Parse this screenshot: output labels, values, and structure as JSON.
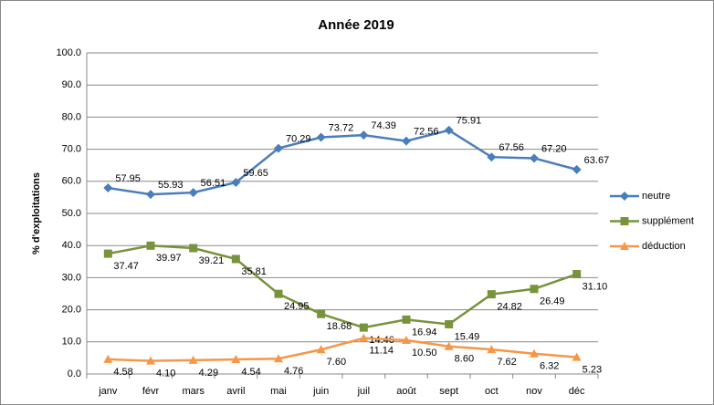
{
  "chart_data": {
    "type": "line",
    "title": "Année 2019",
    "y_label": "% d'exploitations",
    "categories": [
      "janv",
      "févr",
      "mars",
      "avril",
      "mai",
      "juin",
      "juil",
      "août",
      "sept",
      "oct",
      "nov",
      "déc"
    ],
    "series": [
      {
        "name": "neutre",
        "color": "#4a7ebb",
        "marker": "diamond",
        "values": [
          57.95,
          55.93,
          56.51,
          59.65,
          70.29,
          73.72,
          74.39,
          72.56,
          75.91,
          67.56,
          67.2,
          63.67
        ],
        "value_labels": [
          "57.95",
          "55.93",
          "56.51",
          "59.65",
          "70.29",
          "73.72",
          "74.39",
          "72.56",
          "75.91",
          "67.56",
          "67.20",
          "63.67"
        ]
      },
      {
        "name": "supplément",
        "color": "#77933c",
        "marker": "square",
        "values": [
          37.47,
          39.97,
          39.21,
          35.81,
          24.95,
          18.68,
          14.46,
          16.94,
          15.49,
          24.82,
          26.49,
          31.1
        ],
        "value_labels": [
          "37.47",
          "39.97",
          "39.21",
          "35.81",
          "24.95",
          "18.68",
          "14.46",
          "16.94",
          "15.49",
          "24.82",
          "26.49",
          "31.10"
        ]
      },
      {
        "name": "déduction",
        "color": "#f79646",
        "marker": "triangle",
        "values": [
          4.58,
          4.1,
          4.29,
          4.54,
          4.76,
          7.6,
          11.14,
          10.5,
          8.6,
          7.62,
          6.32,
          5.23
        ],
        "value_labels": [
          "4.58",
          "4.10",
          "4.29",
          "4.54",
          "4.76",
          "7.60",
          "11.14",
          "10.50",
          "8.60",
          "7.62",
          "6.32",
          "5.23"
        ]
      }
    ],
    "ylim": [
      0,
      100
    ],
    "yticks": [
      {
        "value": 0,
        "label": "0.0"
      },
      {
        "value": 10,
        "label": "10.0"
      },
      {
        "value": 20,
        "label": "20.0"
      },
      {
        "value": 30,
        "label": "30.0"
      },
      {
        "value": 40,
        "label": "40.0"
      },
      {
        "value": 50,
        "label": "50.0"
      },
      {
        "value": 60,
        "label": "60.0"
      },
      {
        "value": 70,
        "label": "70.0"
      },
      {
        "value": 80,
        "label": "80.0"
      },
      {
        "value": 90,
        "label": "90.0"
      },
      {
        "value": 100,
        "label": "100.0"
      }
    ],
    "grid": true,
    "legend": "right"
  }
}
